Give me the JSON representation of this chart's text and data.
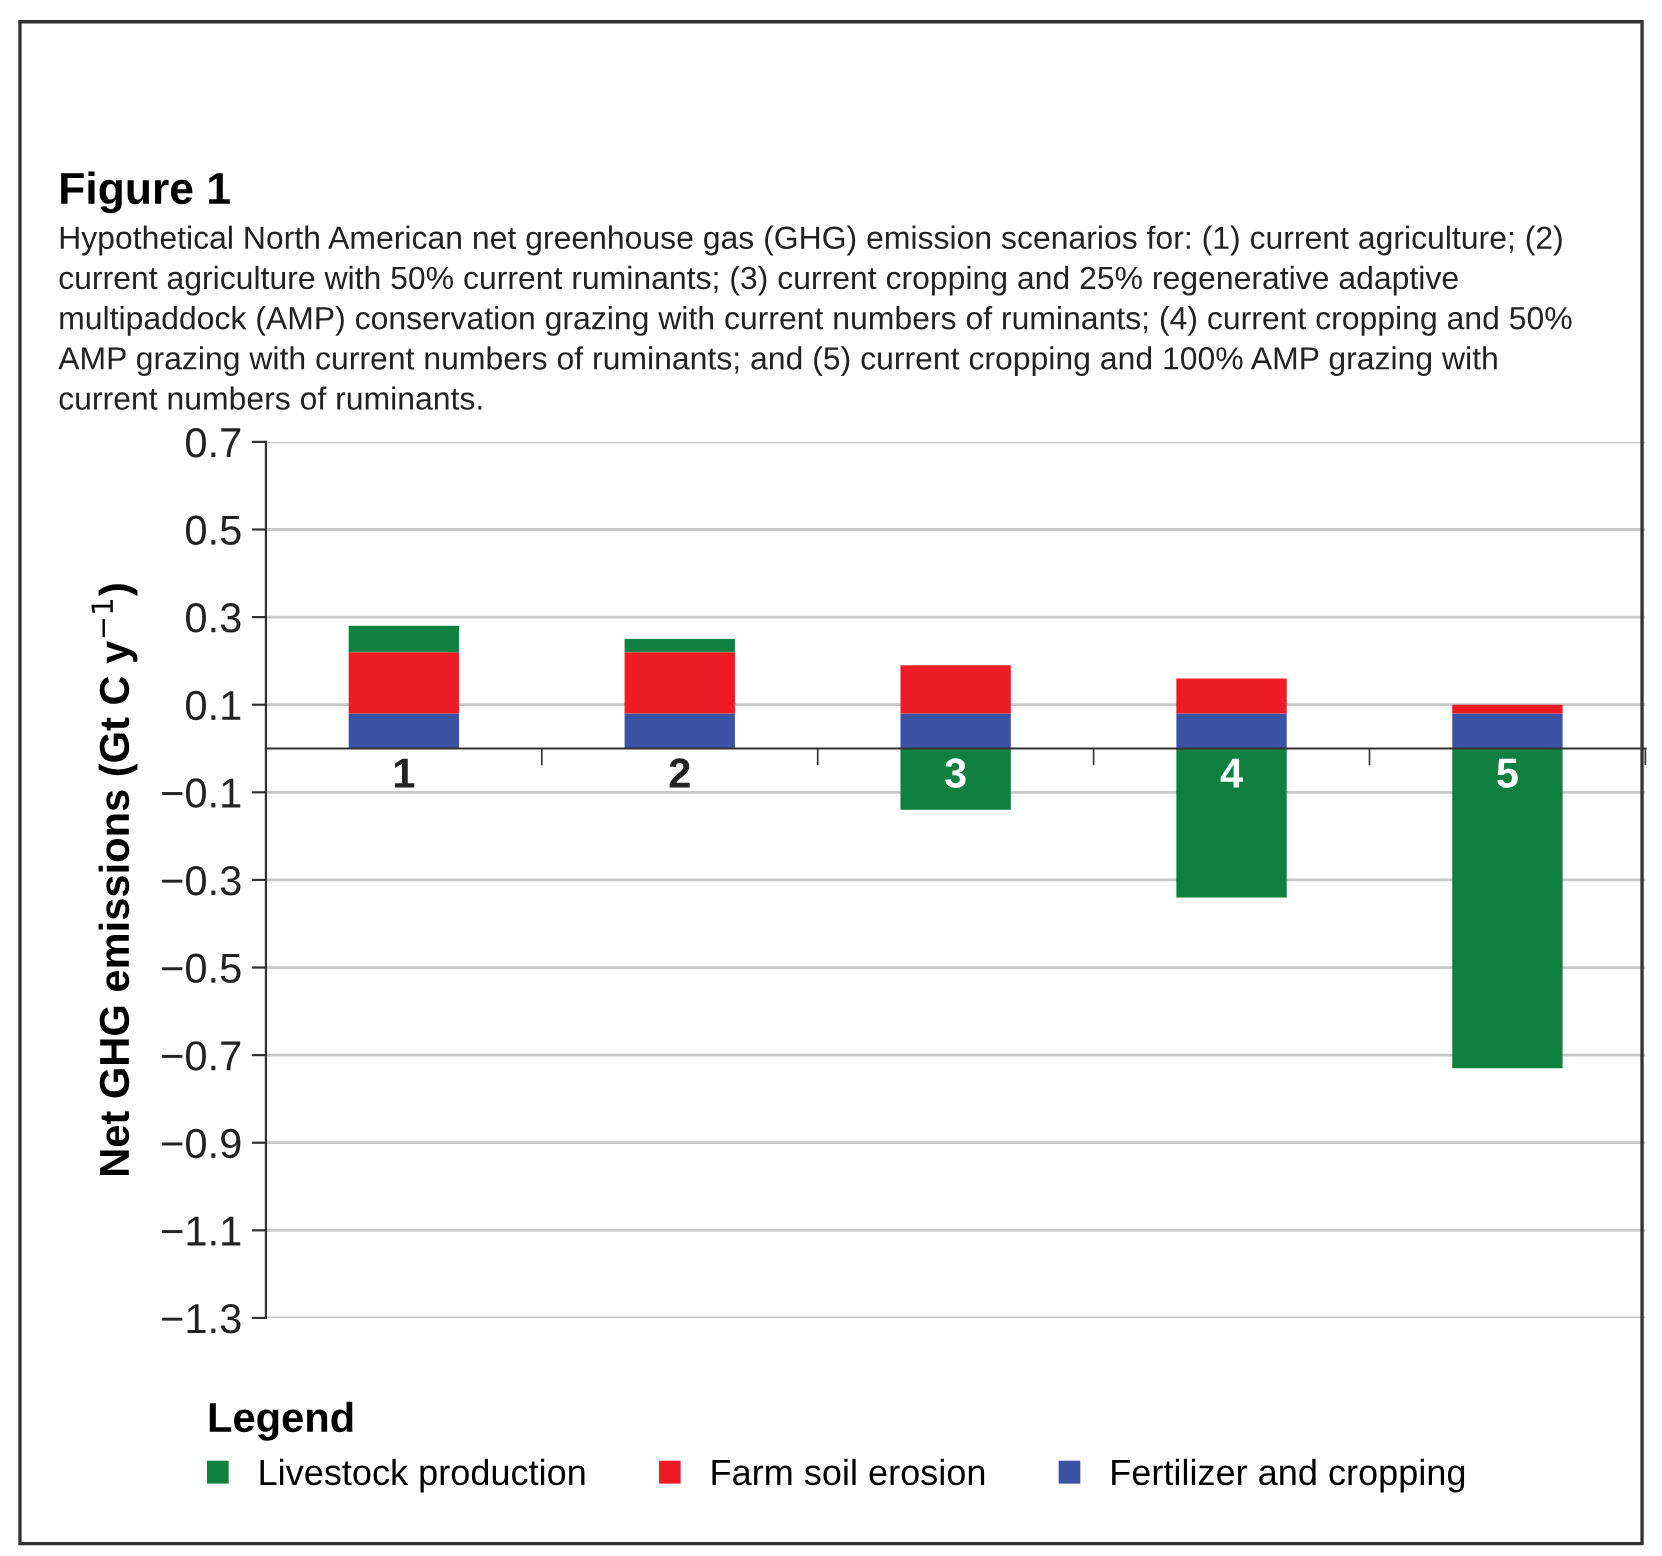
{
  "chart_data": {
    "type": "bar",
    "stacked": true,
    "title": "Figure 1",
    "subtitle": "Hypothetical North American net greenhouse gas (GHG) emission scenarios for: (1) current agriculture; (2) current agriculture with 50% current ruminants; (3) current cropping and 25% regenerative adaptive multipaddock (AMP) conservation grazing with current numbers of ruminants; (4) current cropping and 50% AMP grazing with current numbers of ruminants; and (5) current cropping and 100% AMP grazing with current numbers of ruminants.",
    "ylabel": "Net GHG emissions (Gt C y$^{−1}$)",
    "legend_title": "Legend",
    "categories": [
      "1",
      "2",
      "3",
      "4",
      "5"
    ],
    "series": [
      {
        "name": "Fertilizer and cropping",
        "color": "#3a53a4",
        "values": [
          0.08,
          0.08,
          0.08,
          0.08,
          0.08
        ]
      },
      {
        "name": "Farm soil erosion",
        "color": "#ed1c24",
        "values": [
          0.14,
          0.14,
          0.11,
          0.08,
          0.02
        ]
      },
      {
        "name": "Livestock production",
        "color": "#108040",
        "values": [
          0.06,
          0.03,
          -0.14,
          -0.34,
          -0.73
        ]
      }
    ],
    "ylim": [
      -1.3,
      0.7
    ],
    "yticks": [
      -1.3,
      -1.1,
      -0.9,
      -0.7,
      -0.5,
      -0.3,
      -0.1,
      0.1,
      0.3,
      0.5,
      0.7
    ],
    "grid": "y",
    "legend": "bottom"
  }
}
